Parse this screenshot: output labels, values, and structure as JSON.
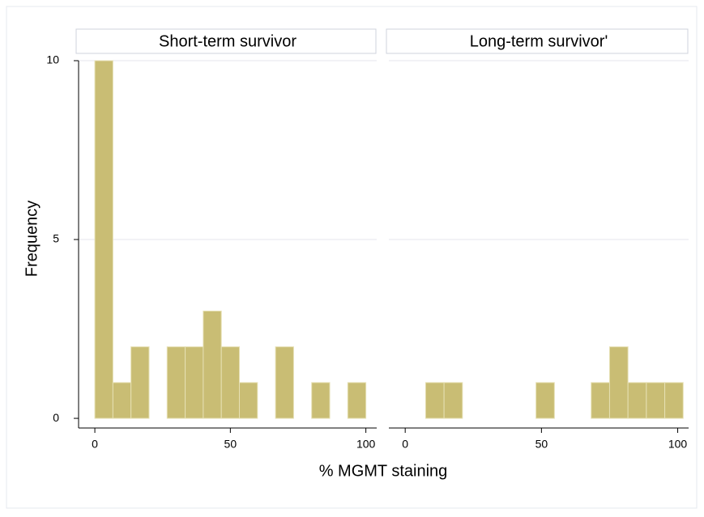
{
  "chart_data": {
    "type": "histogram",
    "ylabel": "Frequency",
    "xlabel": "% MGMT staining",
    "color": "#c9bd74",
    "edge_color": "#e6e0b4",
    "grid": true,
    "xlim": [
      -6,
      104
    ],
    "xticks": [
      0,
      50,
      100
    ],
    "ylim": [
      -0.27,
      10
    ],
    "yticks": [
      0,
      5,
      10
    ],
    "panels": [
      {
        "title": "Short-term survivor",
        "bins": [
          0,
          6.67,
          13.33,
          20,
          26.67,
          33.33,
          40,
          46.67,
          53.33,
          60,
          66.67,
          73.33,
          80,
          86.67,
          93.33,
          100
        ],
        "values": [
          10,
          1,
          2,
          0,
          2,
          2,
          3,
          2,
          1,
          0,
          2,
          0,
          1,
          0,
          1
        ]
      },
      {
        "title": "Long-term survivor'",
        "bins": [
          7.5,
          14.25,
          21,
          27.75,
          34.5,
          41.25,
          48,
          54.75,
          61.5,
          68.25,
          75,
          81.75,
          88.5,
          95.25,
          102
        ],
        "values": [
          1,
          1,
          0,
          0,
          0,
          0,
          1,
          0,
          0,
          1,
          2,
          1,
          1,
          1
        ]
      }
    ]
  }
}
